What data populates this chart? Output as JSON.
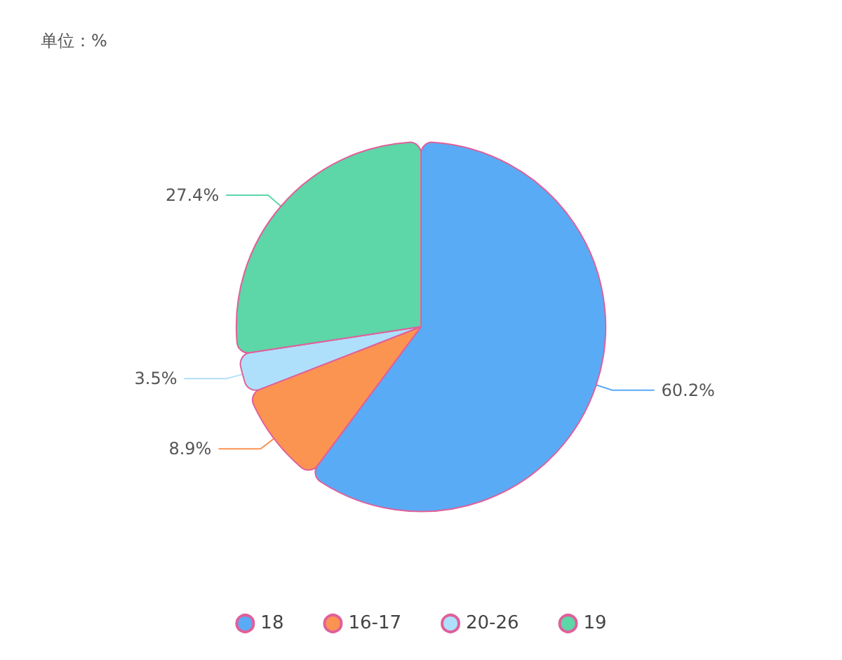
{
  "chart_data": {
    "type": "pie",
    "title": "单位：%",
    "categories": [
      "18",
      "16-17",
      "20-26",
      "19"
    ],
    "values": [
      60.2,
      8.9,
      3.5,
      27.4
    ],
    "colors": [
      "#5aabf5",
      "#fb9451",
      "#aee0fb",
      "#5dd6a8"
    ],
    "value_labels": [
      "60.2%",
      "8.9%",
      "3.5%",
      "27.4%"
    ],
    "legend": "bottom"
  }
}
